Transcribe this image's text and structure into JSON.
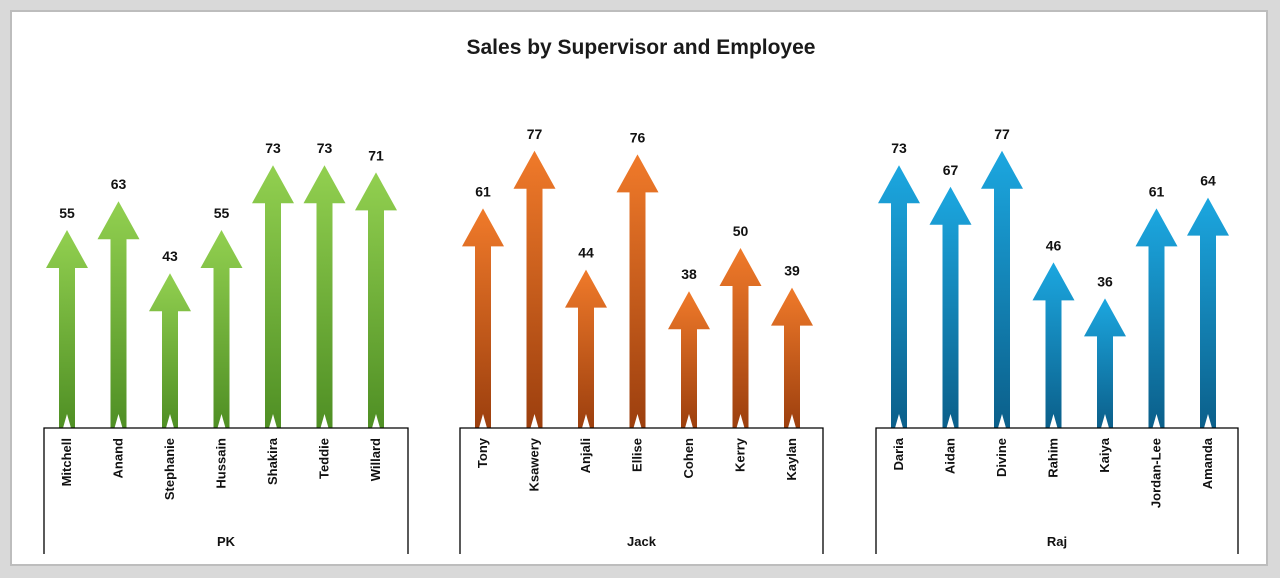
{
  "chart_data": {
    "type": "bar",
    "title": "Sales by Supervisor and Employee",
    "xlabel": "",
    "ylabel": "",
    "ylim": [
      0,
      77
    ],
    "groups": [
      {
        "name": "PK",
        "color_top": "#92d050",
        "color_bottom": "#4f8f24",
        "categories": [
          "Mitchell",
          "Anand",
          "Stephanie",
          "Hussain",
          "Shakira",
          "Teddie",
          "Willard"
        ],
        "values": [
          55,
          63,
          43,
          55,
          73,
          73,
          71
        ]
      },
      {
        "name": "Jack",
        "color_top": "#f07a2a",
        "color_bottom": "#9c3f0e",
        "categories": [
          "Tony",
          "Ksawery",
          "Anjali",
          "Ellise",
          "Cohen",
          "Kerry",
          "Kaylan"
        ],
        "values": [
          61,
          77,
          44,
          76,
          38,
          50,
          39
        ]
      },
      {
        "name": "Raj",
        "color_top": "#1ca7e0",
        "color_bottom": "#0b5f8a",
        "categories": [
          "Daria",
          "Aidan",
          "Divine",
          "Rahim",
          "Kaiya",
          "Jordan-Lee",
          "Amanda"
        ],
        "values": [
          73,
          67,
          77,
          46,
          36,
          61,
          64
        ]
      }
    ]
  }
}
